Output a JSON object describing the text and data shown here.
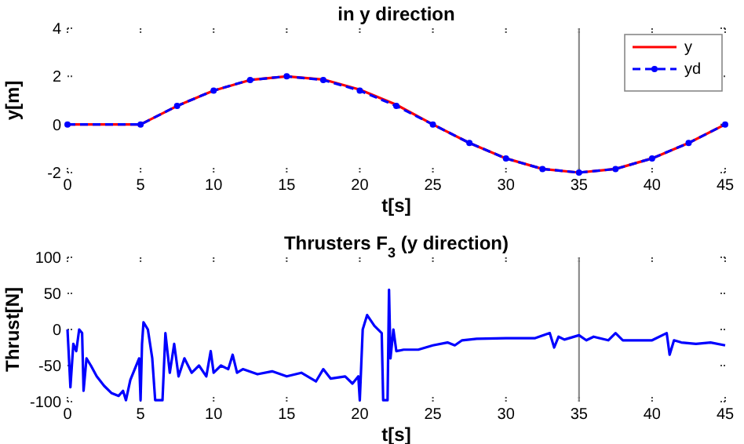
{
  "chart_data": [
    {
      "type": "line",
      "title": "in y direction",
      "xlabel": "t[s]",
      "ylabel": "y[m]",
      "xlim": [
        0,
        45
      ],
      "xticks": [
        0,
        5,
        10,
        15,
        20,
        25,
        30,
        35,
        40,
        45
      ],
      "ylim": [
        -2,
        4
      ],
      "yticks": [
        -2,
        0,
        2,
        4
      ],
      "grid": false,
      "legend": "top right",
      "ref_lines": [
        {
          "axis": "x",
          "value": 35,
          "color": "#808080"
        }
      ],
      "series": [
        {
          "name": "y",
          "color": "#ff0000",
          "line_style": "solid",
          "marker": "none",
          "x": [
            0,
            5,
            7.5,
            10,
            12.5,
            15,
            17.5,
            20,
            22.5,
            25,
            27.5,
            30,
            32.5,
            35,
            37.5,
            40,
            42.5,
            45
          ],
          "values": [
            0,
            0,
            0.77,
            1.41,
            1.85,
            2,
            1.87,
            1.45,
            0.82,
            0,
            -0.77,
            -1.41,
            -1.85,
            -2,
            -1.85,
            -1.41,
            -0.77,
            0
          ]
        },
        {
          "name": "yd",
          "color": "#0000ff",
          "line_style": "dashed",
          "marker": "circle",
          "x": [
            0,
            5,
            7.5,
            10,
            12.5,
            15,
            17.5,
            20,
            22.5,
            25,
            27.5,
            30,
            32.5,
            35,
            37.5,
            40,
            42.5,
            45
          ],
          "values": [
            0,
            0,
            0.77,
            1.41,
            1.85,
            2,
            1.85,
            1.41,
            0.77,
            0,
            -0.77,
            -1.41,
            -1.85,
            -2,
            -1.85,
            -1.41,
            -0.77,
            0
          ]
        }
      ]
    },
    {
      "type": "line",
      "title": "Thrusters F$_{3}$ (y direction)",
      "xlabel": "t[s]",
      "ylabel": "Thrust[N]",
      "xlim": [
        0,
        45
      ],
      "xticks": [
        0,
        5,
        10,
        15,
        20,
        25,
        30,
        35,
        40,
        45
      ],
      "ylim": [
        -100,
        100
      ],
      "yticks": [
        -100,
        -50,
        0,
        50,
        100
      ],
      "grid": false,
      "legend": false,
      "ref_lines": [
        {
          "axis": "x",
          "value": 35,
          "color": "#808080"
        }
      ],
      "series": [
        {
          "color": "#0000ff",
          "line_style": "solid",
          "marker": "none",
          "x": [
            0,
            0.2,
            0.4,
            0.6,
            0.8,
            1.0,
            1.1,
            1.3,
            1.6,
            2,
            2.5,
            3,
            3.5,
            3.8,
            4,
            4.3,
            4.6,
            4.9,
            5.0,
            5.1,
            5.2,
            5.5,
            5.8,
            6,
            6.5,
            6.7,
            7,
            7.3,
            7.6,
            8,
            8.5,
            9,
            9.5,
            9.8,
            10,
            10.5,
            11,
            11.3,
            11.6,
            12,
            13,
            14,
            15,
            16,
            17,
            17.5,
            18,
            19,
            19.5,
            19.9,
            20,
            20.2,
            20.5,
            21,
            21.5,
            21.6,
            21.9,
            22,
            22.1,
            22.3,
            22.5,
            23,
            24,
            25,
            26,
            26.5,
            27,
            28,
            30,
            32,
            33,
            33.3,
            33.6,
            34,
            35,
            35.5,
            36,
            37,
            37.5,
            38,
            39,
            40,
            41,
            41.2,
            41.5,
            42,
            43,
            44,
            45
          ],
          "values": [
            0,
            -80,
            -20,
            -30,
            0,
            -5,
            -85,
            -40,
            -50,
            -65,
            -78,
            -88,
            -92,
            -85,
            -98,
            -70,
            -55,
            -40,
            -98,
            -20,
            10,
            0,
            -40,
            -98,
            -98,
            -5,
            -60,
            -20,
            -65,
            -40,
            -60,
            -50,
            -65,
            -30,
            -60,
            -50,
            -55,
            -35,
            -60,
            -55,
            -62,
            -58,
            -65,
            -60,
            -72,
            -55,
            -68,
            -65,
            -75,
            -65,
            -98,
            0,
            20,
            5,
            -5,
            -98,
            -98,
            55,
            -40,
            0,
            -30,
            -28,
            -28,
            -22,
            -18,
            -22,
            -15,
            -13,
            -12,
            -12,
            -5,
            -25,
            -10,
            -14,
            -8,
            -15,
            -10,
            -15,
            -5,
            -15,
            -15,
            -15,
            -5,
            -35,
            -15,
            -18,
            -20,
            -18,
            -22
          ]
        }
      ]
    }
  ]
}
